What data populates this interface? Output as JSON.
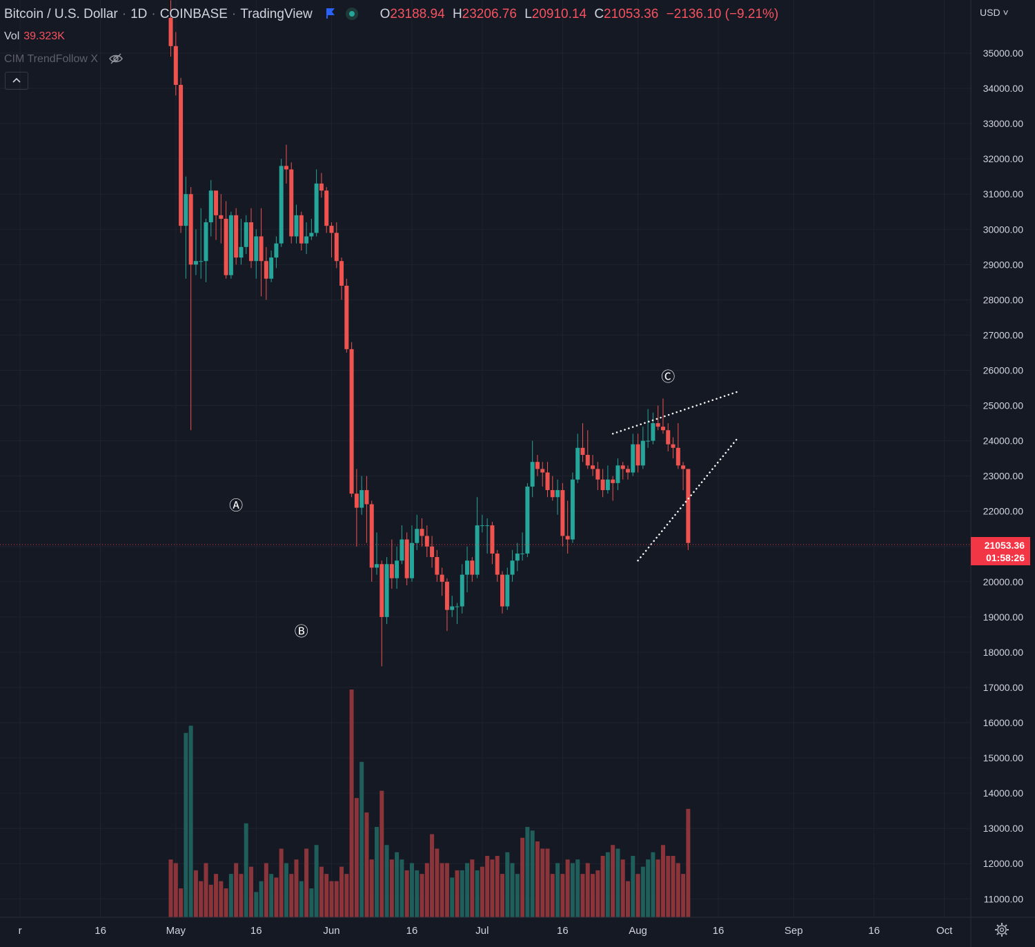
{
  "legend": {
    "symbol": "Bitcoin / U.S. Dollar",
    "interval": "1D",
    "exchange": "COINBASE",
    "source": "TradingView",
    "open_key": "O",
    "open": "23188.94",
    "high_key": "H",
    "high": "23206.76",
    "low_key": "L",
    "low": "20910.14",
    "close_key": "C",
    "close": "21053.36",
    "change": "−2136.10 (−9.21%)",
    "icons": [
      "flag-icon",
      "live-icon"
    ]
  },
  "volume": {
    "label": "Vol",
    "value": "39.323K"
  },
  "indicator": {
    "label": "CIM TrendFollow X",
    "icon": "eye-off-icon"
  },
  "collapse_button": {
    "label": "^",
    "icon": "chevron-up-icon"
  },
  "price_scale": {
    "currency": "USD ˅"
  },
  "last_price": {
    "value": "21053.36",
    "countdown": "01:58:26"
  },
  "settings_icon": "gear-icon",
  "colors": {
    "background": "#151924",
    "up": "#26a69a",
    "down": "#ef5350",
    "volume_up": "#1f5e5a",
    "volume_down": "#8b343a",
    "grid": "#1f232e",
    "text": "#d1d4dc",
    "last_price": "#f23645"
  },
  "chart_data": {
    "type": "candlestick",
    "title": "Bitcoin / U.S. Dollar",
    "y_ticks": [
      "35000.00",
      "34000.00",
      "33000.00",
      "32000.00",
      "31000.00",
      "30000.00",
      "29000.00",
      "28000.00",
      "27000.00",
      "26000.00",
      "25000.00",
      "24000.00",
      "23000.00",
      "22000.00",
      "21000.00",
      "20000.00",
      "19000.00",
      "18000.00",
      "17000.00",
      "16000.00",
      "15000.00",
      "14000.00",
      "13000.00",
      "12000.00",
      "11000.00"
    ],
    "y_tick_values": [
      35000,
      34000,
      33000,
      32000,
      31000,
      30000,
      29000,
      28000,
      27000,
      26000,
      25000,
      24000,
      23000,
      22000,
      21000,
      20000,
      19000,
      18000,
      17000,
      16000,
      15000,
      14000,
      13000,
      12000,
      11000
    ],
    "ylim": [
      10500,
      36500
    ],
    "x_ticks": [
      "r",
      "16",
      "May",
      "16",
      "Jun",
      "16",
      "Jul",
      "16",
      "Aug",
      "16",
      "Sep",
      "16",
      "Oct"
    ],
    "x_tick_days": [
      0,
      16,
      31,
      47,
      62,
      78,
      92,
      108,
      123,
      139,
      154,
      170,
      184
    ],
    "x_start": "2022-04-01",
    "x_end": "2022-10-07",
    "candles": [
      [
        36,
        35.2,
        36.5,
        34.9
      ],
      [
        35.2,
        34.1,
        35.6,
        33.8
      ],
      [
        34.1,
        30.1,
        34.3,
        29.9
      ],
      [
        30.1,
        31,
        31.5,
        28.6
      ],
      [
        31,
        29,
        31.2,
        24.3
      ],
      [
        29,
        29.1,
        30,
        28.7
      ],
      [
        29.1,
        29.1,
        30.6,
        28.6
      ],
      [
        29.1,
        30.2,
        30.3,
        28.5
      ],
      [
        30.2,
        31.1,
        31.4,
        29.8
      ],
      [
        31.1,
        30.4,
        31,
        29.7
      ],
      [
        30.4,
        30.3,
        31,
        29.6
      ],
      [
        30.3,
        28.7,
        30.8,
        28.6
      ],
      [
        28.7,
        30.4,
        30.5,
        28.6
      ],
      [
        30.4,
        29.2,
        30.6,
        29
      ],
      [
        29.2,
        29.5,
        30.3,
        29
      ],
      [
        29.5,
        30.2,
        30.4,
        29.3
      ],
      [
        30.2,
        29.1,
        30.6,
        28.9
      ],
      [
        29.1,
        29.8,
        30,
        28.6
      ],
      [
        29.8,
        29.1,
        30.6,
        28.1
      ],
      [
        29.1,
        28.6,
        29.5,
        28
      ],
      [
        28.6,
        29.2,
        29.4,
        28.5
      ],
      [
        29.2,
        29.6,
        29.8,
        28.9
      ],
      [
        29.6,
        31.8,
        32,
        29.5
      ],
      [
        31.8,
        31.7,
        32.4,
        31.3
      ],
      [
        31.7,
        29.8,
        31.9,
        29.6
      ],
      [
        29.8,
        30.4,
        30.7,
        29.6
      ],
      [
        30.4,
        29.6,
        30.5,
        29.4
      ],
      [
        29.6,
        29.8,
        30.2,
        29.3
      ],
      [
        29.8,
        29.9,
        30.3,
        29.7
      ],
      [
        29.9,
        31.3,
        31.7,
        29.8
      ],
      [
        31.3,
        31.1,
        31.6,
        30.9
      ],
      [
        31.1,
        30.1,
        31.2,
        29.9
      ],
      [
        30.1,
        29.9,
        30.2,
        29.2
      ],
      [
        29.9,
        29.1,
        30.2,
        28.9
      ],
      [
        29.1,
        28.4,
        29.2,
        28
      ],
      [
        28.4,
        26.6,
        28.6,
        26.5
      ],
      [
        26.6,
        22.5,
        26.8,
        22.4
      ],
      [
        22.5,
        22.1,
        23.2,
        21
      ],
      [
        22.1,
        22.6,
        23,
        21.9
      ],
      [
        22.6,
        22.2,
        23,
        21.1
      ],
      [
        22.2,
        20.4,
        22.3,
        20
      ],
      [
        20.4,
        20.5,
        21.4,
        20.2
      ],
      [
        20.5,
        19,
        20.6,
        17.6
      ],
      [
        19,
        20.5,
        20.7,
        18.8
      ],
      [
        20.5,
        20.1,
        21.2,
        19.8
      ],
      [
        20.1,
        20.6,
        21,
        19.8
      ],
      [
        20.6,
        21.2,
        21.6,
        20.5
      ],
      [
        21.2,
        20.1,
        21.4,
        19.9
      ],
      [
        20.1,
        21.1,
        21.6,
        20
      ],
      [
        21.1,
        21.5,
        21.9,
        20.9
      ],
      [
        21.5,
        21.3,
        21.8,
        21
      ],
      [
        21.3,
        21,
        21.6,
        20.7
      ],
      [
        21,
        20.7,
        21.3,
        20.4
      ],
      [
        20.7,
        20.2,
        20.9,
        20
      ],
      [
        20.2,
        20,
        20.4,
        19.6
      ],
      [
        20,
        19.2,
        20.1,
        18.6
      ],
      [
        19.2,
        19.3,
        19.6,
        19
      ],
      [
        19.3,
        19.3,
        19.4,
        18.8
      ],
      [
        19.3,
        20.2,
        20.5,
        19.1
      ],
      [
        20.2,
        20.6,
        21,
        19.7
      ],
      [
        20.6,
        20.2,
        20.7,
        20
      ],
      [
        20.2,
        21.6,
        22.4,
        20.1
      ],
      [
        21.6,
        21.6,
        21.9,
        21.4
      ],
      [
        21.6,
        21.6,
        21.8,
        20.8
      ],
      [
        21.6,
        20.8,
        21.7,
        20.5
      ],
      [
        20.8,
        20.2,
        20.9,
        20
      ],
      [
        20.2,
        19.3,
        20.3,
        19.1
      ],
      [
        19.3,
        20.2,
        20.4,
        19.2
      ],
      [
        20.2,
        20.6,
        20.9,
        20
      ],
      [
        20.6,
        20.8,
        21.1,
        20.3
      ],
      [
        20.8,
        20.8,
        21.4,
        20.6
      ],
      [
        20.8,
        22.7,
        22.8,
        20.7
      ],
      [
        22.7,
        23.4,
        24,
        22.4
      ],
      [
        23.4,
        23.2,
        23.6,
        23
      ],
      [
        23.2,
        23.1,
        23.4,
        22.7
      ],
      [
        23.1,
        22.6,
        23.4,
        22.4
      ],
      [
        22.6,
        22.4,
        23,
        22.3
      ],
      [
        22.4,
        22.6,
        22.9,
        21.9
      ],
      [
        22.6,
        21.3,
        22.8,
        21
      ],
      [
        21.3,
        21.2,
        22.3,
        20.8
      ],
      [
        21.2,
        22.9,
        23.1,
        21.1
      ],
      [
        22.9,
        23.8,
        24.2,
        22.8
      ],
      [
        23.8,
        23.6,
        24.5,
        23.4
      ],
      [
        23.6,
        23.3,
        24.3,
        23.2
      ],
      [
        23.3,
        23.2,
        23.6,
        23
      ],
      [
        23.2,
        22.9,
        23.4,
        22.6
      ],
      [
        22.9,
        22.6,
        23.2,
        22.4
      ],
      [
        22.6,
        22.9,
        23.3,
        22.5
      ],
      [
        22.9,
        22.8,
        23,
        22.3
      ],
      [
        22.8,
        23.3,
        23.5,
        22.6
      ],
      [
        23.3,
        23.2,
        23.4,
        22.9
      ],
      [
        23.2,
        23.1,
        23.3,
        22.9
      ],
      [
        23.1,
        23.9,
        24.2,
        23
      ],
      [
        23.9,
        23.3,
        24.2,
        23.1
      ],
      [
        23.3,
        24,
        24.4,
        23.2
      ],
      [
        24,
        24,
        24.9,
        23.8
      ],
      [
        24,
        24.5,
        24.8,
        23.9
      ],
      [
        24.5,
        24.4,
        25,
        24.3
      ],
      [
        24.4,
        24.3,
        25.2,
        24.2
      ],
      [
        24.3,
        23.9,
        24.5,
        23.7
      ],
      [
        23.9,
        23.8,
        24.1,
        23.5
      ],
      [
        23.8,
        23.3,
        24.5,
        23.2
      ],
      [
        23.3,
        23.2,
        23.4,
        22.6
      ],
      [
        23.2,
        21.1,
        23.2,
        20.9
      ]
    ],
    "annotations": [
      {
        "label": "Ⓐ",
        "day": 43,
        "price": 22170
      },
      {
        "label": "Ⓑ",
        "day": 56,
        "price": 18600
      },
      {
        "label": "Ⓒ",
        "day": 129,
        "price": 25820
      }
    ],
    "trendlines": [
      {
        "from": {
          "day": 118,
          "price": 24200
        },
        "to": {
          "day": 143,
          "price": 25400
        }
      },
      {
        "from": {
          "day": 123,
          "price": 20600
        },
        "to": {
          "day": 143,
          "price": 24100
        }
      }
    ],
    "volume_series": [
      "12.2",
      "12.1",
      "11.4",
      "15.7",
      "15.9",
      "11.9",
      "11.6",
      "12.1",
      "11.5",
      "11.8",
      "11.6",
      "11.4",
      "11.8",
      "12.1",
      "11.8",
      "13.2",
      "12",
      "11.3",
      "11.6",
      "12.1",
      "11.8",
      "11.7",
      "12.5",
      "12.1",
      "11.8",
      "12.2",
      "11.6",
      "12.5",
      "11.4",
      "12.6",
      "12",
      "11.8",
      "11.6",
      "11.6",
      "12",
      "11.8",
      "16.9",
      "13.9",
      "14.9",
      "13.5",
      "12.2",
      "13.1",
      "14.1",
      "12.6",
      "12.2",
      "12.4",
      "12.2",
      "11.9",
      "12.1",
      "11.9",
      "11.8",
      "12.1",
      "12.9",
      "12.5",
      "12.1",
      "12.1",
      "11.7",
      "11.9",
      "11.9",
      "12.1",
      "12.2",
      "11.9",
      "12",
      "12.3",
      "12.2",
      "12.3",
      "11.8",
      "12.4",
      "12.1",
      "11.8",
      "12.8",
      "13.1",
      "13",
      "12.7",
      "12.5",
      "12.5",
      "11.8",
      "12.1",
      "11.8",
      "12.2",
      "12.1",
      "12.2",
      "11.8",
      "12.1",
      "11.8",
      "11.9",
      "12.3",
      "12.4",
      "12.6",
      "12.5",
      "12.2",
      "11.6",
      "12.3",
      "11.8",
      "12",
      "12.2",
      "12.4",
      "12.2",
      "12.6",
      "12.3",
      "12.3",
      "12.1",
      "11.8",
      "13.6"
    ],
    "volume_up": [
      false,
      false,
      false,
      true,
      true,
      false,
      false,
      false,
      false,
      false,
      false,
      false,
      true,
      false,
      false,
      true,
      false,
      true,
      true,
      false,
      true,
      false,
      false,
      true,
      false,
      false,
      true,
      false,
      true,
      true,
      false,
      false,
      false,
      false,
      false,
      false,
      false,
      false,
      true,
      false,
      false,
      true,
      false,
      true,
      false,
      true,
      true,
      false,
      true,
      true,
      false,
      false,
      false,
      false,
      false,
      false,
      true,
      false,
      true,
      true,
      false,
      true,
      false,
      false,
      false,
      false,
      false,
      true,
      true,
      true,
      false,
      true,
      true,
      false,
      false,
      false,
      false,
      true,
      false,
      false,
      true,
      true,
      false,
      false,
      false,
      false,
      false,
      true,
      false,
      true,
      false,
      false,
      true,
      false,
      true,
      true,
      true,
      false,
      false,
      false,
      false,
      false,
      false,
      false
    ]
  }
}
